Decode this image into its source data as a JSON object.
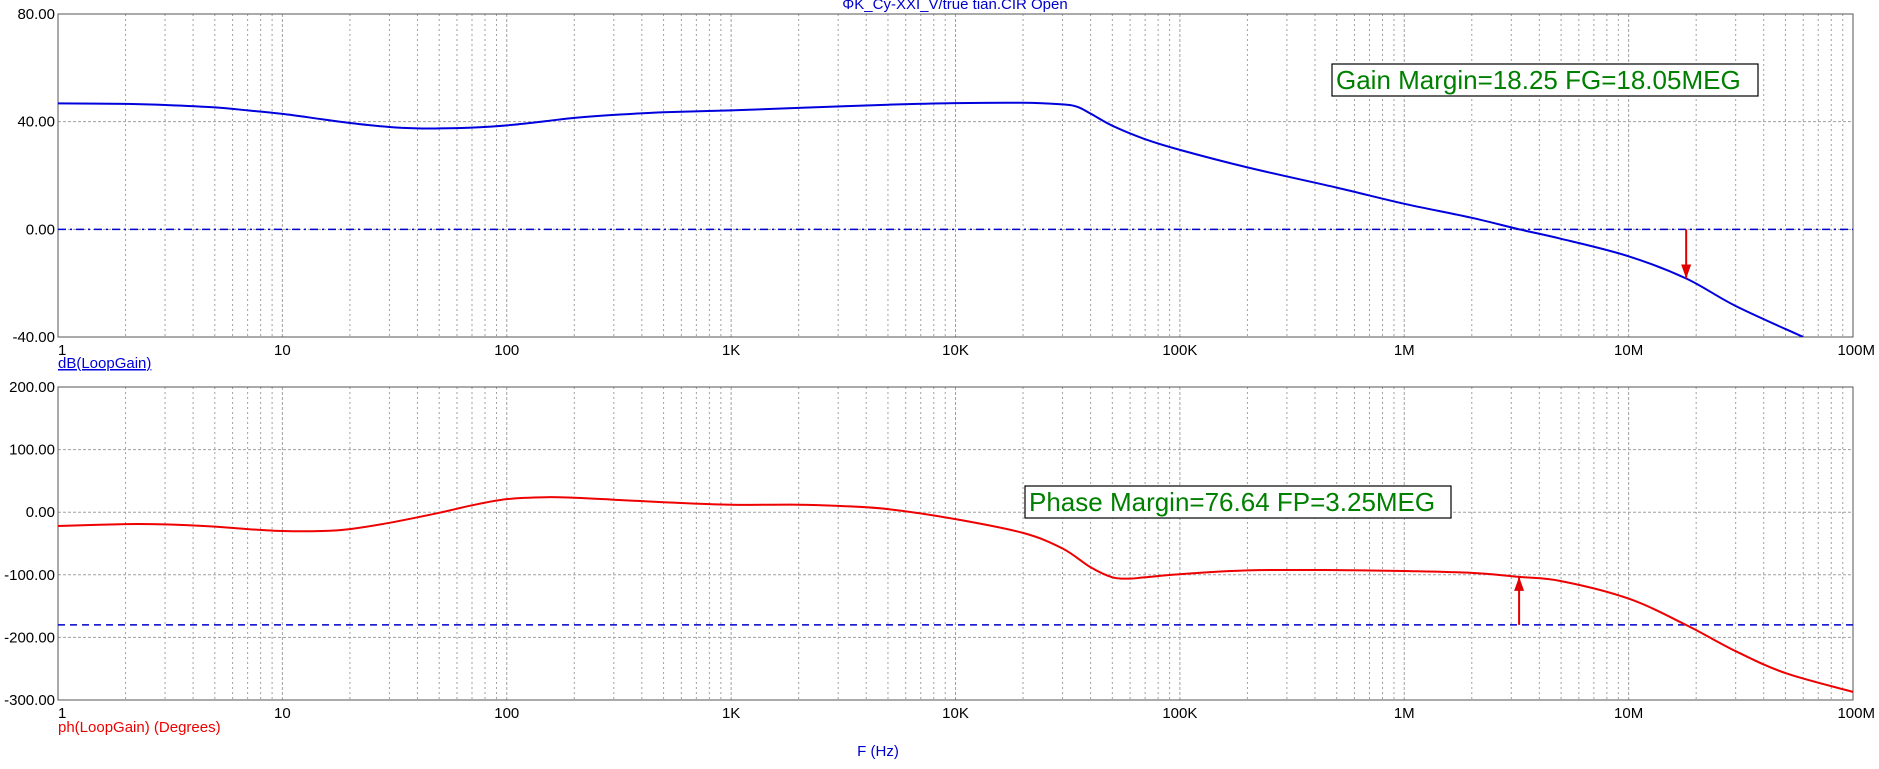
{
  "window_title": "ΦK_Cy-XXI_V/true tian.CIR Open",
  "xlabel": "F (Hz)",
  "colors": {
    "gain": "#0000dd",
    "phase": "#ee0000",
    "reference": "#0000cc",
    "annotation_text": "#008000",
    "grid": "#a0a0a0"
  },
  "chart_data": [
    {
      "type": "line",
      "ylabel": "dB(LoopGain)",
      "x_scale": "log",
      "xlim": [
        1,
        100000000
      ],
      "ylim": [
        -40,
        80
      ],
      "x_tick_labels": [
        "1",
        "10",
        "100",
        "1K",
        "10K",
        "100K",
        "1M",
        "10M",
        "100M"
      ],
      "y_tick_labels": [
        "80.00",
        "40.00",
        "0.00",
        "-40.00"
      ],
      "grid": true,
      "reference_line": 0,
      "annotation": "Gain Margin=18.25 FG=18.05MEG",
      "marker": {
        "x": 18050000,
        "from": 0,
        "to": -18.25,
        "direction": "down"
      },
      "series": [
        {
          "x": [
            1,
            2,
            3,
            5,
            7,
            10,
            15,
            20,
            30,
            40,
            50,
            70,
            100,
            150,
            200,
            300,
            500,
            1000,
            2000,
            5000,
            10000,
            20000,
            30000,
            35000,
            40000,
            50000,
            70000,
            100000,
            200000,
            500000,
            1000000,
            2000000,
            3250000,
            5000000,
            10000000,
            18050000,
            30000000,
            60000000
          ],
          "y": [
            46.8,
            46.6,
            46.2,
            45.3,
            44.2,
            42.9,
            40.9,
            39.5,
            38.0,
            37.5,
            37.5,
            37.8,
            38.6,
            40.2,
            41.4,
            42.5,
            43.5,
            44.2,
            45.1,
            46.3,
            46.9,
            47.0,
            46.4,
            45.5,
            43.0,
            38.5,
            33.5,
            29.5,
            23.0,
            15.5,
            9.5,
            4.3,
            0.0,
            -3.5,
            -10.0,
            -18.25,
            -28.5,
            -40.0
          ]
        }
      ]
    },
    {
      "type": "line",
      "ylabel": "ph(LoopGain) (Degrees)",
      "x_scale": "log",
      "xlim": [
        1,
        100000000
      ],
      "ylim": [
        -300,
        200
      ],
      "x_tick_labels": [
        "1",
        "10",
        "100",
        "1K",
        "10K",
        "100K",
        "1M",
        "10M",
        "100M"
      ],
      "y_tick_labels": [
        "200.00",
        "100.00",
        "0.00",
        "-100.00",
        "-200.00",
        "-300.00"
      ],
      "grid": true,
      "reference_line": -180,
      "annotation": "Phase Margin=76.64 FP=3.25MEG",
      "marker": {
        "x": 3250000,
        "from": -180,
        "to": -103.36,
        "direction": "up"
      },
      "series": [
        {
          "x": [
            1,
            2,
            3,
            5,
            7,
            10,
            15,
            20,
            30,
            50,
            70,
            100,
            150,
            200,
            300,
            500,
            1000,
            2000,
            3000,
            5000,
            10000,
            20000,
            30000,
            40000,
            50000,
            60000,
            70000,
            100000,
            200000,
            500000,
            1000000,
            2000000,
            3250000,
            5000000,
            10000000,
            18000000,
            30000000,
            50000000,
            100000000
          ],
          "y": [
            -22,
            -19,
            -19.5,
            -23,
            -27,
            -30,
            -30,
            -27,
            -17,
            -1,
            11,
            21,
            24,
            23,
            20,
            16,
            12,
            12,
            10,
            5,
            -11,
            -33,
            -58,
            -88,
            -104,
            -106,
            -104,
            -99,
            -93,
            -92.5,
            -94,
            -97,
            -103.36,
            -110,
            -138,
            -180,
            -222,
            -257,
            -287
          ]
        }
      ]
    }
  ]
}
